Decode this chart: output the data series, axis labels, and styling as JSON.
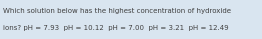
{
  "text_line1": "Which solution below has the highest concentration of hydroxide",
  "text_line2": "ions? pH = 7.93  pH = 10.12  pH = 7.00  pH = 3.21  pH = 12.49",
  "background_color": "#d9e5f0",
  "text_color": "#404040",
  "font_size": 5.0,
  "fig_width": 2.62,
  "fig_height": 0.39,
  "dpi": 100
}
